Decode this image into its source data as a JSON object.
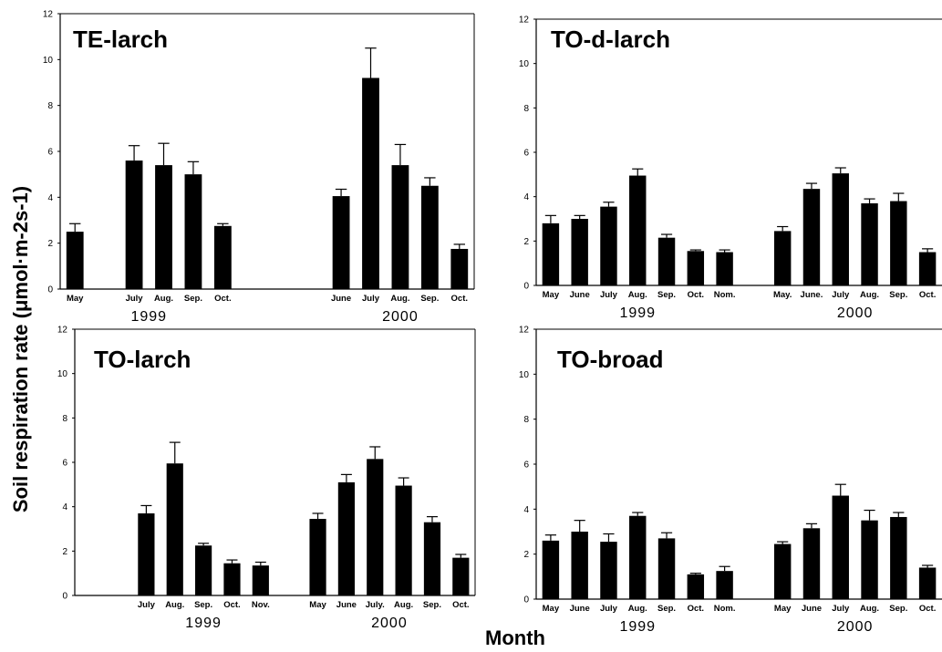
{
  "ylabel": "Soil respiration rate (μmol·m-2s-1)",
  "xlabel": "Month",
  "colors": {
    "bar": "#000000",
    "axis": "#000000",
    "background": "#ffffff"
  },
  "chart_data": [
    {
      "type": "bar",
      "title": "TE-larch",
      "ylim": [
        0,
        12
      ],
      "yticks": [
        "0",
        "2",
        "4",
        "6",
        "8",
        "10",
        "12"
      ],
      "categories": [
        "May",
        "",
        "July",
        "Aug.",
        "Sep.",
        "Oct.",
        "",
        "",
        "",
        "June",
        "July",
        "Aug.",
        "Sep.",
        "Oct."
      ],
      "values": [
        2.5,
        null,
        5.6,
        5.4,
        5.0,
        2.75,
        null,
        null,
        null,
        4.05,
        9.2,
        5.4,
        4.5,
        1.75
      ],
      "errors": [
        0.35,
        null,
        0.65,
        0.95,
        0.55,
        0.1,
        null,
        null,
        null,
        0.3,
        1.3,
        0.9,
        0.35,
        0.2
      ],
      "groups": [
        {
          "label": "1999",
          "from": 0,
          "to": 5
        },
        {
          "label": "2000",
          "from": 9,
          "to": 13
        }
      ]
    },
    {
      "type": "bar",
      "title": "TO-d-larch",
      "ylim": [
        0,
        12
      ],
      "yticks": [
        "0",
        "2",
        "4",
        "6",
        "8",
        "10",
        "12"
      ],
      "categories": [
        "May",
        "June",
        "July",
        "Aug.",
        "Sep.",
        "Oct.",
        "Nom.",
        "",
        "May.",
        "June.",
        "July",
        "Aug.",
        "Sep.",
        "Oct."
      ],
      "values": [
        2.8,
        3.0,
        3.55,
        4.95,
        2.15,
        1.55,
        1.5,
        null,
        2.45,
        4.35,
        5.05,
        3.7,
        3.8,
        1.5
      ],
      "errors": [
        0.35,
        0.15,
        0.2,
        0.3,
        0.15,
        0.05,
        0.1,
        null,
        0.2,
        0.25,
        0.25,
        0.2,
        0.35,
        0.15
      ],
      "groups": [
        {
          "label": "1999",
          "from": 0,
          "to": 6
        },
        {
          "label": "2000",
          "from": 8,
          "to": 13
        }
      ]
    },
    {
      "type": "bar",
      "title": "TO-larch",
      "ylim": [
        0,
        12
      ],
      "yticks": [
        "0",
        "2",
        "4",
        "6",
        "8",
        "10",
        "12"
      ],
      "categories": [
        "",
        "",
        "July",
        "Aug.",
        "Sep.",
        "Oct.",
        "Nov.",
        "",
        "May",
        "June",
        "July.",
        "Aug.",
        "Sep.",
        "Oct."
      ],
      "values": [
        null,
        null,
        3.7,
        5.95,
        2.25,
        1.45,
        1.35,
        null,
        3.45,
        5.1,
        6.15,
        4.95,
        3.3,
        1.7
      ],
      "errors": [
        null,
        null,
        0.35,
        0.95,
        0.1,
        0.15,
        0.15,
        null,
        0.25,
        0.35,
        0.55,
        0.35,
        0.25,
        0.15
      ],
      "groups": [
        {
          "label": "1999",
          "from": 2,
          "to": 6
        },
        {
          "label": "2000",
          "from": 8,
          "to": 13
        }
      ]
    },
    {
      "type": "bar",
      "title": "TO-broad",
      "ylim": [
        0,
        12
      ],
      "yticks": [
        "0",
        "2",
        "4",
        "6",
        "8",
        "10",
        "12"
      ],
      "categories": [
        "May",
        "June",
        "July",
        "Aug.",
        "Sep.",
        "Oct.",
        "Nom.",
        "",
        "May",
        "June",
        "July",
        "Aug.",
        "Sep.",
        "Oct."
      ],
      "values": [
        2.6,
        3.0,
        2.55,
        3.7,
        2.7,
        1.1,
        1.25,
        null,
        2.45,
        3.15,
        4.6,
        3.5,
        3.65,
        1.4
      ],
      "errors": [
        0.25,
        0.5,
        0.35,
        0.15,
        0.25,
        0.05,
        0.2,
        null,
        0.1,
        0.2,
        0.5,
        0.45,
        0.2,
        0.1
      ],
      "groups": [
        {
          "label": "1999",
          "from": 0,
          "to": 6
        },
        {
          "label": "2000",
          "from": 8,
          "to": 13
        }
      ]
    }
  ]
}
